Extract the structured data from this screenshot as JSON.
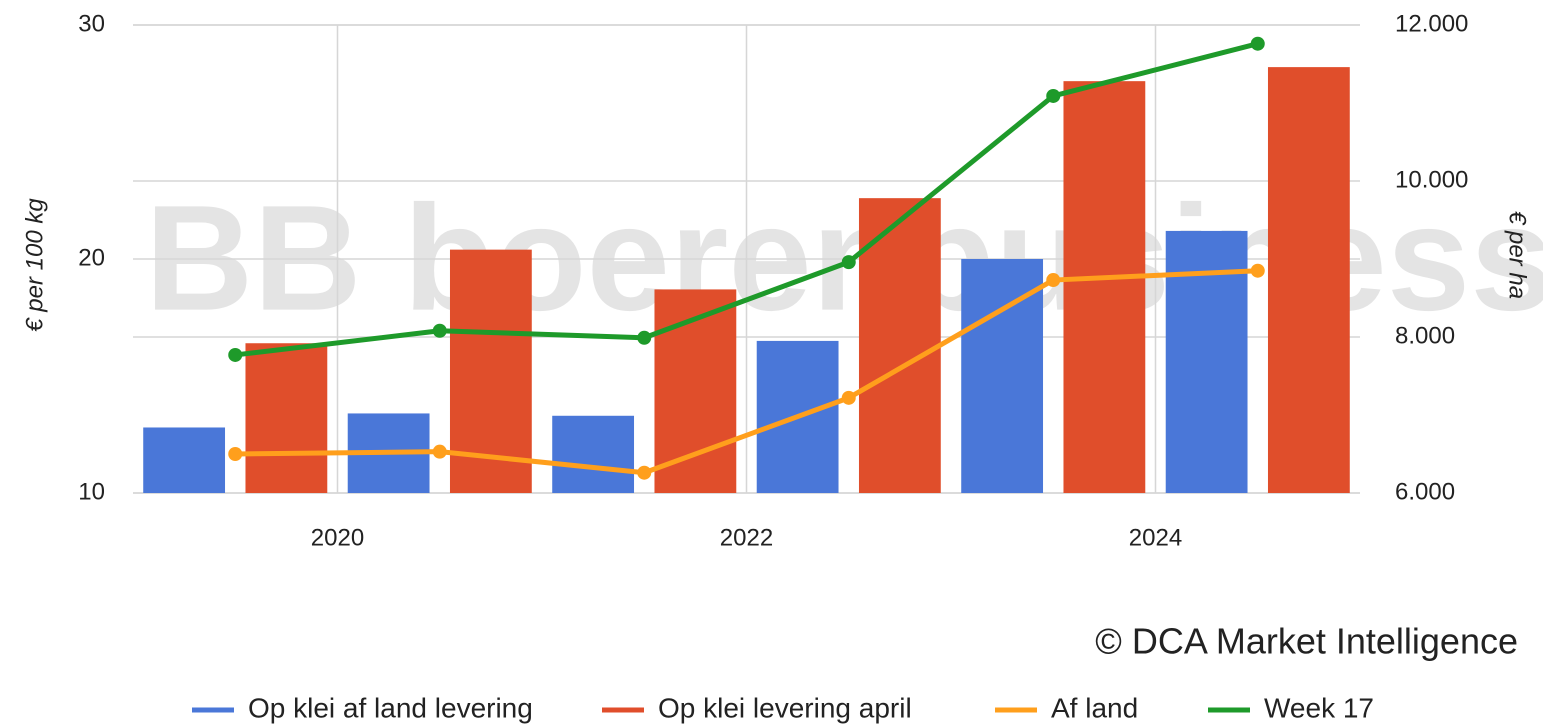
{
  "chart_data": {
    "type": "bar",
    "watermark": "BB boerenbusiness",
    "credit": "© DCA Market Intelligence",
    "ylabel": "€ per 100 kg",
    "y2label": "€ per ha",
    "x": [
      2019.5,
      2020.5,
      2021.5,
      2022.5,
      2023.5,
      2024.5
    ],
    "xlim": [
      2019,
      2025
    ],
    "xticks": [
      2020,
      2022,
      2024
    ],
    "ylim": [
      10,
      30
    ],
    "yticks": [
      10,
      20,
      30
    ],
    "y2lim": [
      6000,
      12000
    ],
    "y2ticks": [
      {
        "value": 6000,
        "label": "6.000"
      },
      {
        "value": 8000,
        "label": "8.000"
      },
      {
        "value": 10000,
        "label": "10.000"
      },
      {
        "value": 12000,
        "label": "12.000"
      }
    ],
    "grid": true,
    "legend": "bottom",
    "series": [
      {
        "name": "Op klei af land levering",
        "type": "bar",
        "color": "#4a77d8",
        "values": [
          12.8,
          13.4,
          13.3,
          16.5,
          20.0,
          21.2
        ]
      },
      {
        "name": "Op klei levering april",
        "type": "bar",
        "color": "#e04e2b",
        "values": [
          16.4,
          20.4,
          18.7,
          22.6,
          27.6,
          28.2
        ]
      },
      {
        "name": "Af land",
        "type": "line",
        "axis": "y2",
        "color": "#ff9f1c",
        "values": [
          6500,
          6530,
          6260,
          7220,
          8730,
          8850
        ]
      },
      {
        "name": "Week 17",
        "type": "line",
        "axis": "y2",
        "color": "#1e9a2a",
        "values": [
          7770,
          8080,
          7990,
          8960,
          11090,
          11760
        ]
      }
    ]
  }
}
